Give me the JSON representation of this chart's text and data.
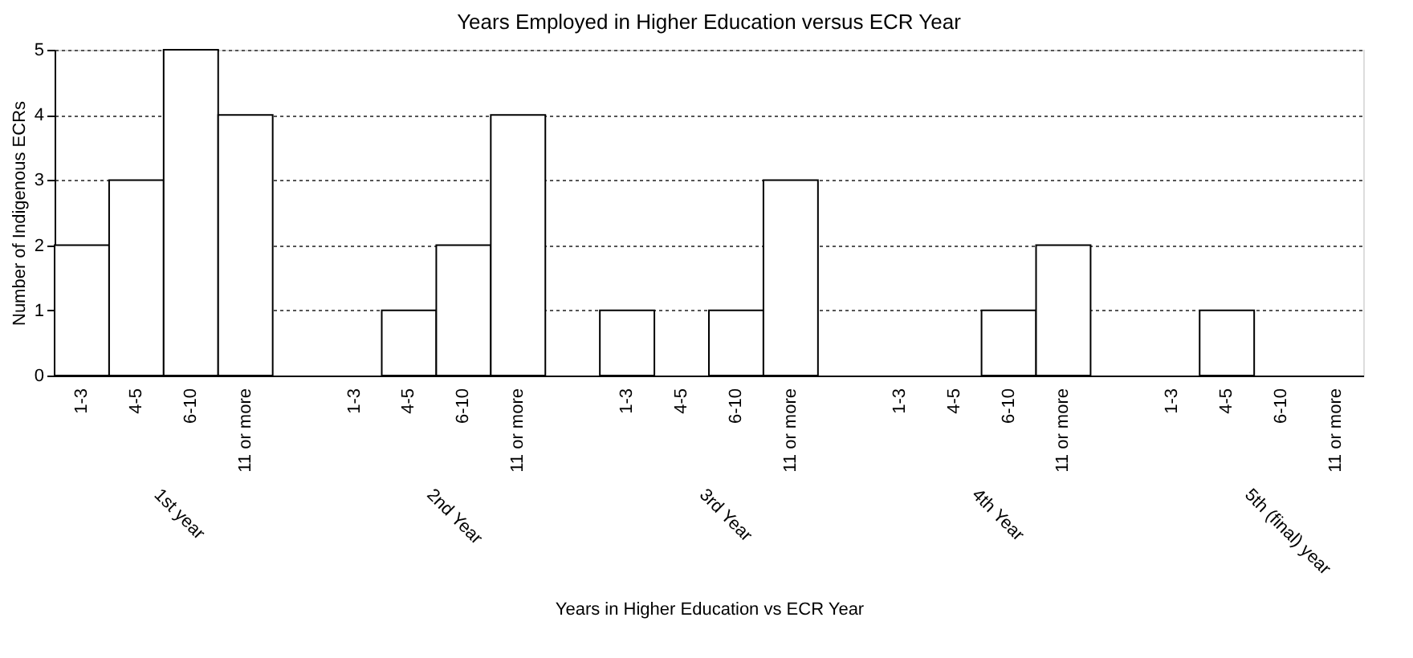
{
  "chart_data": {
    "type": "bar",
    "title": "Years Employed  in Higher Education versus ECR Year",
    "xlabel": "Years in Higher Education vs ECR Year",
    "ylabel": "Number of Indigenous ECRs",
    "categories": [
      "1st year",
      "2nd Year",
      "3rd Year",
      "4th Year",
      "5th (final) year"
    ],
    "series": [
      {
        "name": "1-3",
        "color": "#ffffff",
        "values": [
          2,
          0,
          1,
          0,
          0
        ]
      },
      {
        "name": "4-5",
        "color": "#ffffff",
        "values": [
          3,
          1,
          0,
          0,
          1
        ]
      },
      {
        "name": "6-10",
        "color": "#ffffff",
        "values": [
          5,
          2,
          1,
          1,
          0
        ]
      },
      {
        "name": "11 or more",
        "color": "#ffffff",
        "values": [
          4,
          4,
          3,
          2,
          0
        ]
      }
    ],
    "ylim": [
      0,
      5
    ],
    "yticks": [
      0,
      1,
      2,
      3,
      4,
      5
    ],
    "grid": "y"
  }
}
